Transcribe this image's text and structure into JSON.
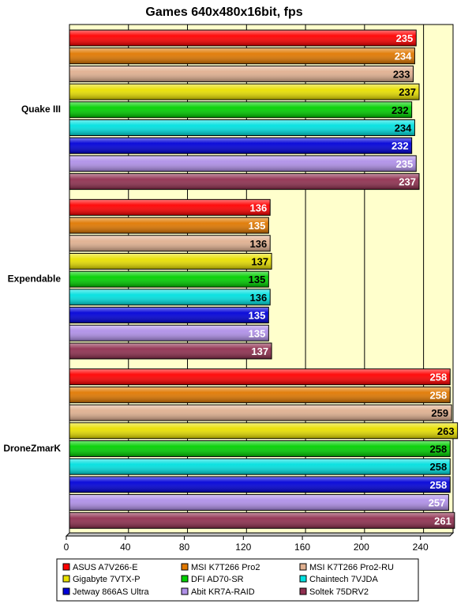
{
  "chart_data": {
    "type": "bar",
    "orientation": "horizontal",
    "title": "Games 640x480x16bit, fps",
    "categories": [
      "Quake III",
      "Expendable",
      "DroneZmarK"
    ],
    "xlim": [
      0,
      260
    ],
    "xticks": [
      0,
      40,
      80,
      120,
      160,
      200,
      240
    ],
    "grid": true,
    "legend_position": "bottom",
    "series": [
      {
        "name": "ASUS A7V266-E",
        "color": "#ff0000",
        "label_color": "#ffffff",
        "values": [
          235,
          136,
          258
        ]
      },
      {
        "name": "MSI K7T266 Pro2",
        "color": "#e07800",
        "label_color": "#ffffff",
        "values": [
          234,
          135,
          258
        ]
      },
      {
        "name": "MSI K7T266 Pro2-RU",
        "color": "#e0b090",
        "label_color": "#000000",
        "values": [
          233,
          136,
          259
        ]
      },
      {
        "name": "Gigabyte 7VTX-P",
        "color": "#e8e000",
        "label_color": "#000000",
        "values": [
          237,
          137,
          263
        ]
      },
      {
        "name": "DFI AD70-SR",
        "color": "#00d000",
        "label_color": "#000000",
        "values": [
          232,
          135,
          258
        ]
      },
      {
        "name": "Chaintech 7VJDA",
        "color": "#00e0e0",
        "label_color": "#000000",
        "values": [
          234,
          136,
          258
        ]
      },
      {
        "name": "Jetway 866AS Ultra",
        "color": "#0000d8",
        "label_color": "#ffffff",
        "values": [
          232,
          135,
          258
        ]
      },
      {
        "name": "Abit KR7A-RAID",
        "color": "#b090e8",
        "label_color": "#ffffff",
        "values": [
          235,
          135,
          257
        ]
      },
      {
        "name": "Soltek 75DRV2",
        "color": "#903050",
        "label_color": "#ffffff",
        "values": [
          237,
          137,
          261
        ]
      }
    ]
  },
  "colors": {
    "plot_background": "#ffffcc",
    "page_background": "#ffffff"
  }
}
